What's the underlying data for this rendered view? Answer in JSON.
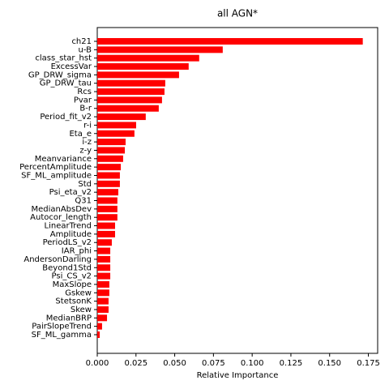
{
  "chart_data": {
    "type": "barh",
    "title": "all AGN*",
    "xlabel": "Relative Importance",
    "categories": [
      "ch21",
      "u-B",
      "class_star_hst",
      "ExcessVar",
      "GP_DRW_sigma",
      "GP_DRW_tau",
      "Rcs",
      "Pvar",
      "B-r",
      "Period_fit_v2",
      "r-i",
      "Eta_e",
      "i-z",
      "z-y",
      "Meanvariance",
      "PercentAmplitude",
      "SF_ML_amplitude",
      "Std",
      "Psi_eta_v2",
      "Q31",
      "MedianAbsDev",
      "Autocor_length",
      "LinearTrend",
      "Amplitude",
      "PeriodLS_v2",
      "IAR_phi",
      "AndersonDarling",
      "Beyond1Std",
      "Psi_CS_v2",
      "MaxSlope",
      "Gskew",
      "StetsonK",
      "Skew",
      "MedianBRP",
      "PairSlopeTrend",
      "SF_ML_gamma"
    ],
    "values": [
      0.1714,
      0.081,
      0.0658,
      0.059,
      0.0528,
      0.0439,
      0.0434,
      0.0418,
      0.0397,
      0.0313,
      0.0251,
      0.024,
      0.0183,
      0.0178,
      0.0167,
      0.0152,
      0.0146,
      0.0146,
      0.0136,
      0.013,
      0.013,
      0.013,
      0.0115,
      0.0115,
      0.0094,
      0.0084,
      0.0084,
      0.0084,
      0.0084,
      0.0078,
      0.0078,
      0.0073,
      0.0073,
      0.0063,
      0.0031,
      0.0016
    ],
    "color": "#ff0000",
    "xlim": [
      0,
      0.181
    ],
    "xticks": [
      {
        "value": 0,
        "label": "0.000"
      },
      {
        "value": 0.025,
        "label": "0.025"
      },
      {
        "value": 0.05,
        "label": "0.050"
      },
      {
        "value": 0.075,
        "label": "0.075"
      },
      {
        "value": 0.1,
        "label": "0.100"
      },
      {
        "value": 0.125,
        "label": "0.125"
      },
      {
        "value": 0.15,
        "label": "0.150"
      },
      {
        "value": 0.175,
        "label": "0.175"
      }
    ]
  }
}
